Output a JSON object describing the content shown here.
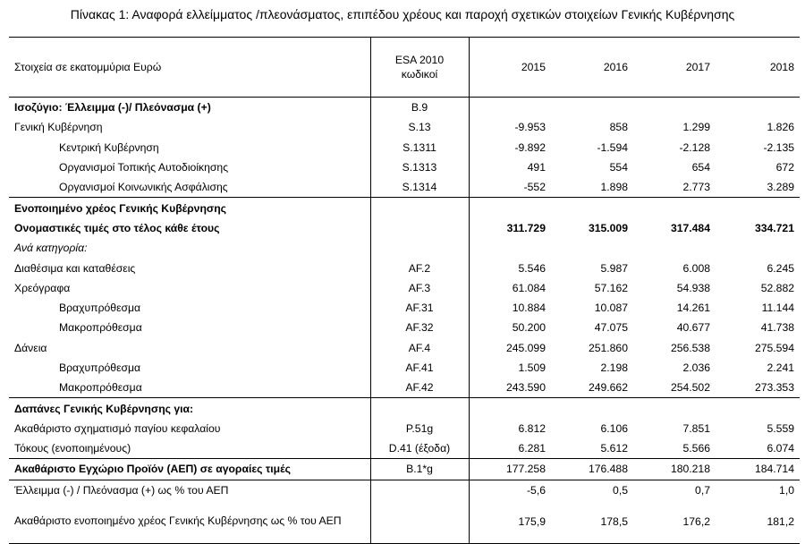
{
  "title": "Πίνακας 1: Αναφορά ελλείμματος /πλεονάσματος, επιπέδου χρέους και παροχή σχετικών στοιχείων Γενικής Κυβέρνησης",
  "header": {
    "label": "Στοιχεία σε εκατομμύρια Ευρώ",
    "code_line1": "ESA 2010",
    "code_line2": "κωδικοί",
    "years": [
      "2015",
      "2016",
      "2017",
      "2018"
    ]
  },
  "rows": [
    {
      "label": "Ισοζύγιο: Έλλειμμα (-)/ Πλεόνασμα (+)",
      "code": "B.9",
      "values": [
        "",
        "",
        "",
        ""
      ]
    },
    {
      "label": "Γενική Κυβέρνηση",
      "code": "S.13",
      "values": [
        "-9.953",
        "858",
        "1.299",
        "1.826"
      ]
    },
    {
      "label": "Κεντρική Κυβέρνηση",
      "code": "S.1311",
      "values": [
        "-9.892",
        "-1.594",
        "-2.128",
        "-2.135"
      ]
    },
    {
      "label": "Οργανισμοί Τοπικής Αυτοδιοίκησης",
      "code": "S.1313",
      "values": [
        "491",
        "554",
        "654",
        "672"
      ]
    },
    {
      "label": "Οργανισμοί Κοινωνικής Ασφάλισης",
      "code": "S.1314",
      "values": [
        "-552",
        "1.898",
        "2.773",
        "3.289"
      ]
    },
    {
      "label": "Ενοποιημένο χρέος Γενικής Κυβέρνησης",
      "code": "",
      "values": [
        "",
        "",
        "",
        ""
      ]
    },
    {
      "label": "Ονομαστικές τιμές στο τέλος κάθε έτους",
      "code": "",
      "values": [
        "311.729",
        "315.009",
        "317.484",
        "334.721"
      ]
    },
    {
      "label": "Ανά κατηγορία:",
      "code": "",
      "values": [
        "",
        "",
        "",
        ""
      ]
    },
    {
      "label": "Διαθέσιμα και καταθέσεις",
      "code": "AF.2",
      "values": [
        "5.546",
        "5.987",
        "6.008",
        "6.245"
      ]
    },
    {
      "label": "Χρεόγραφα",
      "code": "AF.3",
      "values": [
        "61.084",
        "57.162",
        "54.938",
        "52.882"
      ]
    },
    {
      "label": "Βραχυπρόθεσμα",
      "code": "AF.31",
      "values": [
        "10.884",
        "10.087",
        "14.261",
        "11.144"
      ]
    },
    {
      "label": "Μακροπρόθεσμα",
      "code": "AF.32",
      "values": [
        "50.200",
        "47.075",
        "40.677",
        "41.738"
      ]
    },
    {
      "label": "Δάνεια",
      "code": "AF.4",
      "values": [
        "245.099",
        "251.860",
        "256.538",
        "275.594"
      ]
    },
    {
      "label": "Βραχυπρόθεσμα",
      "code": "AF.41",
      "values": [
        "1.509",
        "2.198",
        "2.036",
        "2.241"
      ]
    },
    {
      "label": "Μακροπρόθεσμα",
      "code": "AF.42",
      "values": [
        "243.590",
        "249.662",
        "254.502",
        "273.353"
      ]
    },
    {
      "label": "Δαπάνες Γενικής Κυβέρνησης για:",
      "code": "",
      "values": [
        "",
        "",
        "",
        ""
      ]
    },
    {
      "label": "Ακαθάριστο σχηματισμό παγίου κεφαλαίου",
      "code": "P.51g",
      "values": [
        "6.812",
        "6.106",
        "7.851",
        "5.559"
      ]
    },
    {
      "label": "Τόκους (ενοποιημένους)",
      "code": "D.41 (έξοδα)",
      "values": [
        "6.281",
        "5.612",
        "5.566",
        "6.074"
      ]
    },
    {
      "label": "Ακαθάριστο Εγχώριο Προϊόν (ΑΕΠ) σε αγοραίες τιμές",
      "code": "B.1*g",
      "values": [
        "177.258",
        "176.488",
        "180.218",
        "184.714"
      ]
    },
    {
      "label": "Έλλειμμα (-) / Πλεόνασμα (+) ως % του ΑΕΠ",
      "code": "",
      "values": [
        "-5,6",
        "0,5",
        "0,7",
        "1,0"
      ]
    },
    {
      "label": "Ακαθάριστο ενοποιημένο χρέος Γενικής Κυβέρνησης ως % του ΑΕΠ",
      "code": "",
      "values": [
        "175,9",
        "178,5",
        "176,2",
        "181,2"
      ]
    }
  ]
}
